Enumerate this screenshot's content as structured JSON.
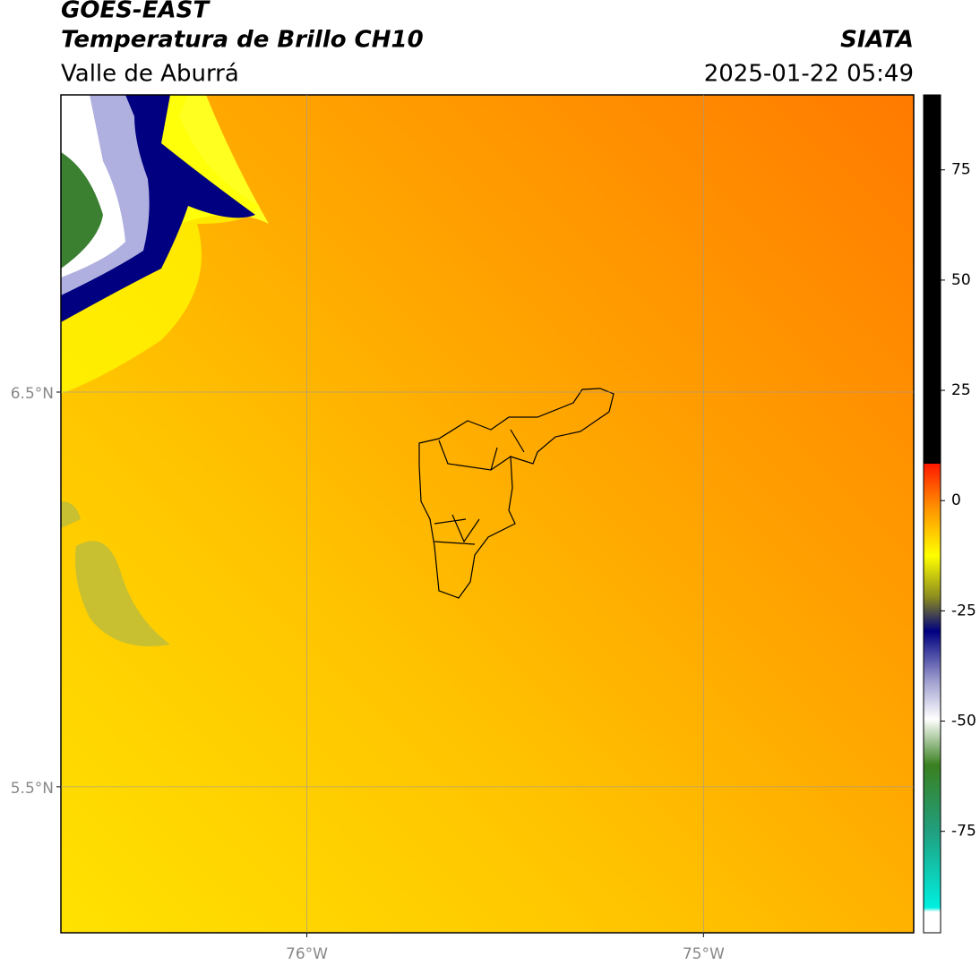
{
  "header": {
    "title": "GOES-EAST",
    "subtitle": "Temperatura de Brillo CH10",
    "region": "Valle de Aburrá",
    "source": "SIATA",
    "datetime": "2025-01-22 05:49"
  },
  "map": {
    "latlim": [
      5.13,
      7.253
    ],
    "lonlim": [
      -76.62,
      -74.47
    ],
    "latticks": [
      {
        "value": 6.5,
        "label": "6.5°N"
      },
      {
        "value": 5.5,
        "label": "5.5°N"
      }
    ],
    "lonticks": [
      {
        "value": -76,
        "label": "76°W"
      },
      {
        "value": -75,
        "label": "75°W"
      }
    ],
    "grid": true
  },
  "colorbar": {
    "lim": [
      -98,
      92
    ],
    "ticks": [
      75,
      50,
      25,
      0,
      -25,
      -50,
      -75
    ]
  }
}
